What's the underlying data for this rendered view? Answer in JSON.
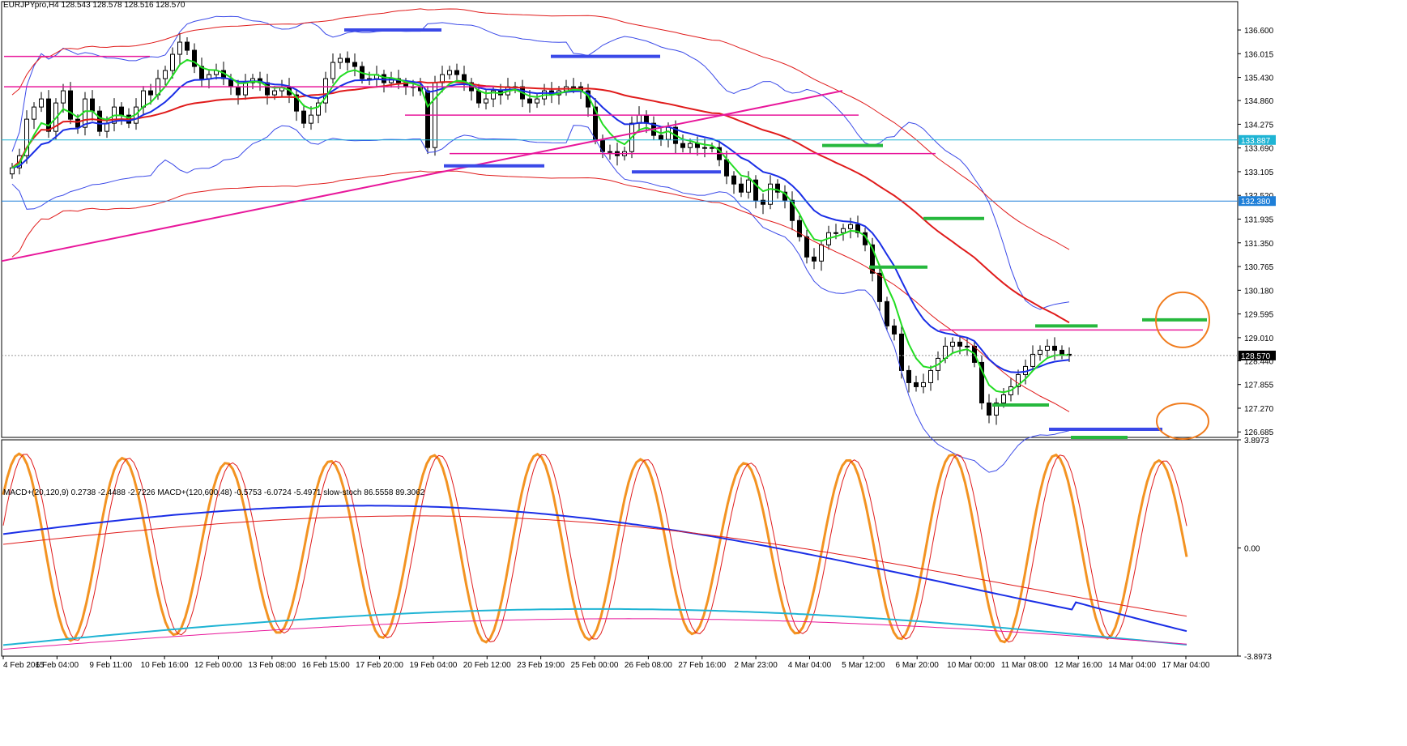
{
  "header": {
    "symbol_line": "EURJPYpro,H4  128.543 128.578 128.516 128.570",
    "indicator_line": "MACD+(20,120,9) 0.2738 -2.4488 -2.7226  MACD+(120,600,48) -0.5753 -6.0724 -5.4971  slow-stoch 86.5558 89.3062"
  },
  "chart_data": [
    {
      "type": "candlestick",
      "symbol": "EURJPYpro",
      "timeframe": "H4",
      "ohlc_last": {
        "open": 128.543,
        "high": 128.578,
        "low": 128.516,
        "close": 128.57
      },
      "ylim": [
        126.55,
        137.3
      ],
      "y_ticks": [
        "136.600",
        "136.015",
        "135.430",
        "134.860",
        "134.275",
        "133.690",
        "133.105",
        "132.520",
        "131.935",
        "131.350",
        "130.765",
        "130.180",
        "129.595",
        "129.010",
        "128.440",
        "127.855",
        "127.270",
        "126.685"
      ],
      "x_ticks": [
        "4 Feb 2015",
        "6 Feb 04:00",
        "9 Feb 11:00",
        "10 Feb 16:00",
        "12 Feb 00:00",
        "13 Feb 08:00",
        "16 Feb 15:00",
        "17 Feb 20:00",
        "19 Feb 04:00",
        "20 Feb 12:00",
        "23 Feb 19:00",
        "25 Feb 00:00",
        "26 Feb 08:00",
        "27 Feb 16:00",
        "2 Mar 23:00",
        "4 Mar 04:00",
        "5 Mar 12:00",
        "6 Mar 20:00",
        "10 Mar 00:00",
        "11 Mar 08:00",
        "12 Mar 16:00",
        "14 Mar 04:00",
        "17 Mar 04:00"
      ],
      "price_labels": [
        {
          "value": 133.887,
          "text": "133.887",
          "color": "#1fb4d4"
        },
        {
          "value": 132.38,
          "text": "132.380",
          "color": "#1e7fd8"
        },
        {
          "value": 128.57,
          "text": "128.570",
          "color": "#000000"
        }
      ],
      "closes": [
        133.2,
        133.5,
        134.4,
        134.7,
        134.9,
        134.1,
        134.8,
        135.1,
        134.4,
        134.2,
        134.9,
        134.6,
        134.1,
        134.3,
        134.7,
        134.5,
        134.3,
        134.7,
        135.1,
        135.0,
        135.4,
        135.6,
        136.0,
        136.3,
        136.1,
        135.7,
        135.4,
        135.5,
        135.6,
        135.4,
        135.2,
        135.0,
        135.3,
        135.4,
        135.3,
        135.0,
        135.1,
        135.2,
        135.0,
        134.6,
        134.3,
        134.5,
        134.8,
        135.4,
        135.8,
        135.9,
        135.8,
        135.7,
        135.4,
        135.4,
        135.5,
        135.3,
        135.4,
        135.3,
        135.2,
        135.2,
        135.1,
        133.7,
        135.3,
        135.5,
        135.6,
        135.5,
        135.3,
        135.1,
        134.8,
        134.9,
        135.1,
        135.0,
        135.2,
        135.2,
        134.9,
        134.8,
        134.9,
        135.1,
        135.0,
        135.1,
        135.2,
        135.2,
        135.1,
        134.7,
        133.9,
        133.6,
        133.6,
        133.5,
        133.6,
        134.3,
        134.5,
        134.3,
        134.0,
        133.9,
        134.2,
        133.8,
        133.7,
        133.8,
        133.7,
        133.7,
        133.7,
        133.4,
        133.0,
        132.8,
        132.6,
        132.9,
        132.4,
        132.3,
        132.8,
        132.6,
        132.4,
        131.9,
        131.5,
        131.0,
        130.9,
        131.3,
        131.6,
        131.6,
        131.7,
        131.8,
        131.6,
        131.3,
        130.6,
        129.9,
        129.3,
        129.1,
        128.2,
        127.9,
        127.8,
        127.9,
        128.2,
        128.5,
        128.8,
        128.9,
        128.8,
        128.8,
        128.4,
        127.4,
        127.1,
        127.4,
        127.6,
        127.8,
        128.1,
        128.3,
        128.6,
        128.7,
        128.8,
        128.7,
        128.6,
        128.57
      ],
      "series_colors": {
        "ema_fast": "#22dd22",
        "ema_slow": "#1a2ee6",
        "ma_long": "#e01b1b",
        "bollinger": "#3a49e8",
        "envelope": "#e01b1b",
        "support_resist": "#e8179b",
        "h_line1": "#1fb4d4",
        "h_line2": "#1e7fd8"
      }
    },
    {
      "type": "line",
      "name": "MACD / slow-stoch oscillator",
      "ylim": [
        -3.8973,
        3.8973
      ],
      "y_ticks": [
        "3.8973",
        "0.00",
        "-3.8973"
      ],
      "series_colors": {
        "stoch_main": "#f39322",
        "stoch_signal": "#e01b1b",
        "macd_fast": "#1a2ee6",
        "macd_slow": "#1fb4d4",
        "signal_slow": "#e8179b"
      }
    }
  ]
}
